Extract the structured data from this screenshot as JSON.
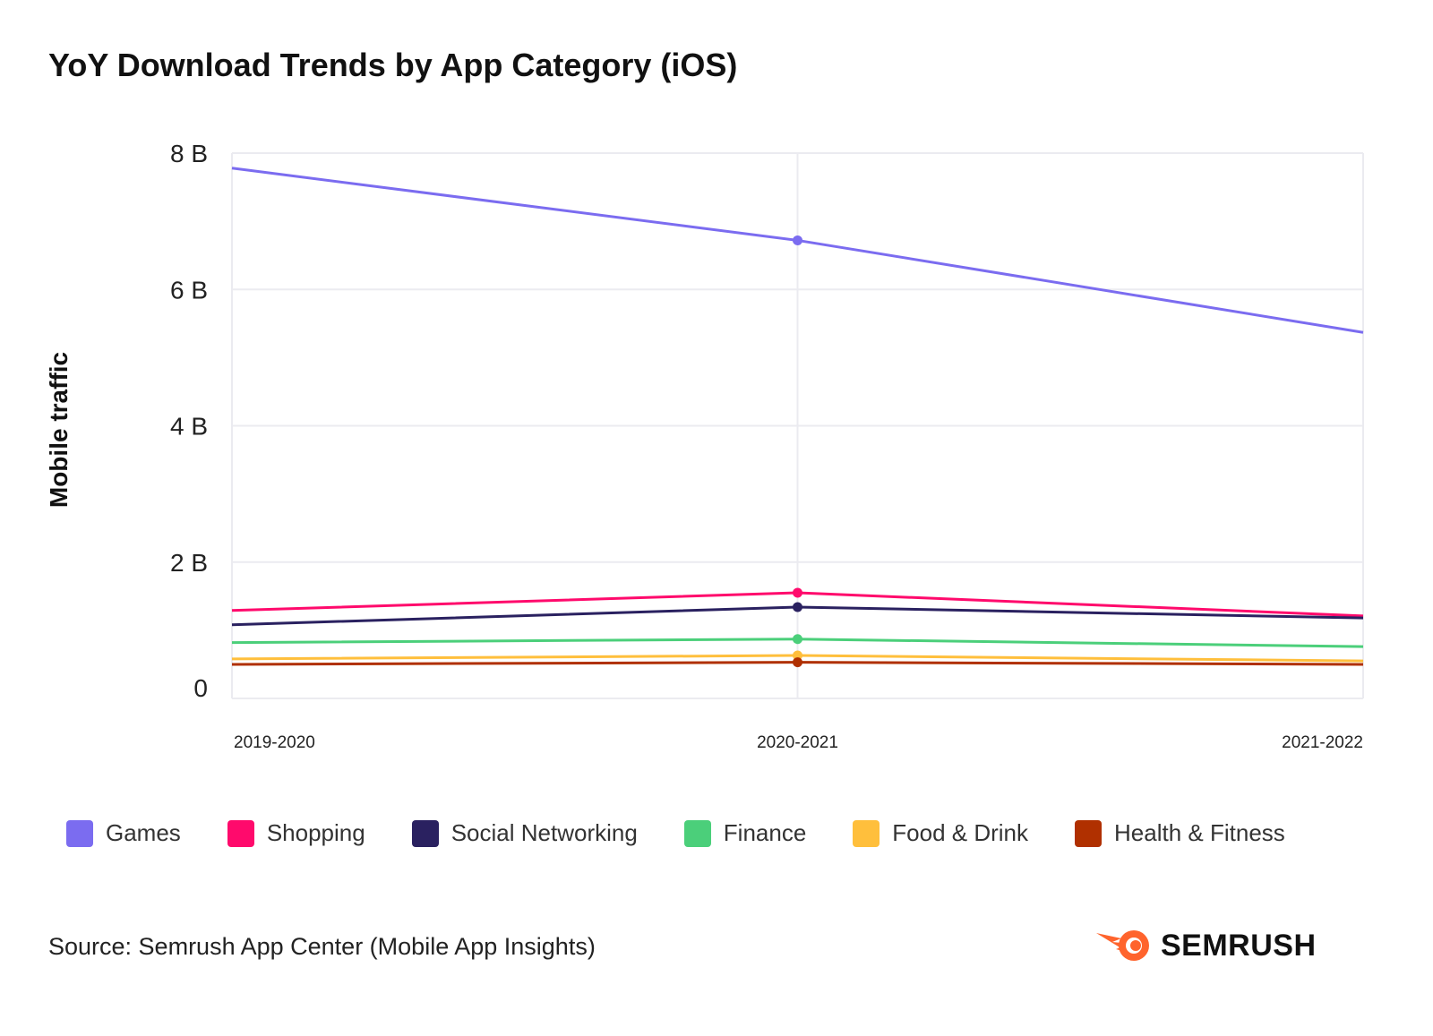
{
  "title": "YoY Download Trends by App Category (iOS)",
  "source": "Source: Semrush App Center (Mobile App Insights)",
  "logo": "SEMRUSH",
  "chart_data": {
    "type": "line",
    "title": "YoY Download Trends by App Category (iOS)",
    "xlabel": "",
    "ylabel": "Mobile traffic",
    "categories": [
      "2019-2020",
      "2020-2021",
      "2021-2022"
    ],
    "ylim": [
      0,
      8
    ],
    "yticks": [
      0,
      2,
      4,
      6,
      8
    ],
    "ytick_labels": [
      "0",
      "2 B",
      "4 B",
      "6 B",
      "8 B"
    ],
    "unit": "billions",
    "grid": true,
    "legend": "bottom",
    "series": [
      {
        "name": "Games",
        "color": "#7b6cf0",
        "values": [
          7.78,
          6.72,
          5.37
        ]
      },
      {
        "name": "Shopping",
        "color": "#ff0a6c",
        "values": [
          1.29,
          1.55,
          1.21
        ]
      },
      {
        "name": "Social Networking",
        "color": "#2a2160",
        "values": [
          1.08,
          1.34,
          1.18
        ]
      },
      {
        "name": "Finance",
        "color": "#4bcf7a",
        "values": [
          0.82,
          0.87,
          0.76
        ]
      },
      {
        "name": "Food & Drink",
        "color": "#ffbf3c",
        "values": [
          0.58,
          0.63,
          0.55
        ]
      },
      {
        "name": "Health & Fitness",
        "color": "#b03000",
        "values": [
          0.5,
          0.53,
          0.5
        ]
      }
    ]
  }
}
